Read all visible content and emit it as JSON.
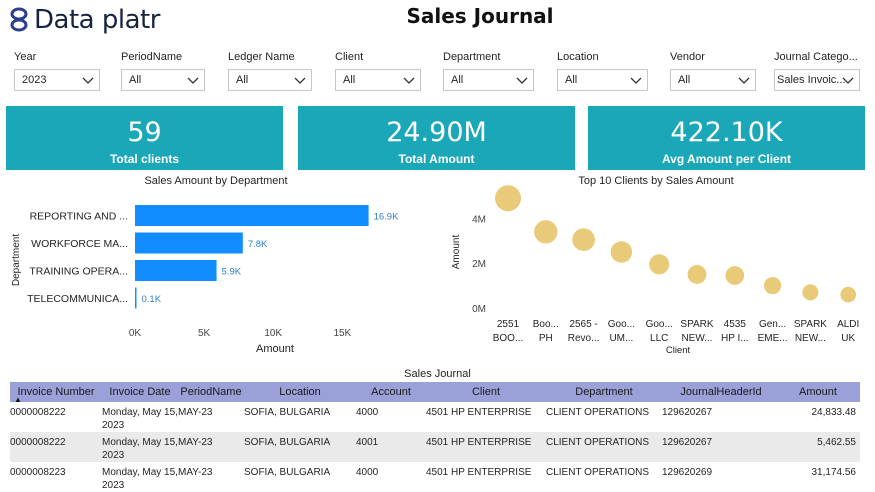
{
  "header": {
    "logo_text": "Data platr",
    "title": "Sales Journal"
  },
  "filters": [
    {
      "label": "Year",
      "value": "2023"
    },
    {
      "label": "PeriodName",
      "value": "All"
    },
    {
      "label": "Ledger Name",
      "value": "All"
    },
    {
      "label": "Client",
      "value": "All"
    },
    {
      "label": "Department",
      "value": "All"
    },
    {
      "label": "Location",
      "value": "All"
    },
    {
      "label": "Vendor",
      "value": "All"
    },
    {
      "label": "Journal Catego...",
      "value": "Sales Invoic..."
    }
  ],
  "kpis": [
    {
      "value": "59",
      "label": "Total clients"
    },
    {
      "value": "24.90M",
      "label": "Total Amount"
    },
    {
      "value": "422.10K",
      "label": "Avg Amount per Client"
    }
  ],
  "colors": {
    "kpi_bg": "#1aa8b8",
    "bar": "#118dff",
    "bubble": "#e6c56e",
    "table_header": "#9aa0d8"
  },
  "chart_data": [
    {
      "type": "bar",
      "orientation": "horizontal",
      "title": "Sales Amount by Department",
      "xlabel": "Amount",
      "ylabel": "Department",
      "categories": [
        "REPORTING AND ...",
        "WORKFORCE MA...",
        "TRAINING OPERA...",
        "TELECOMMUNICA..."
      ],
      "values": [
        16900,
        7800,
        5900,
        100
      ],
      "data_labels": [
        "16.9K",
        "7.8K",
        "5.9K",
        "0.1K"
      ],
      "xlim": [
        0,
        20000
      ],
      "xticks": [
        0,
        5000,
        10000,
        15000
      ],
      "xtick_labels": [
        "0K",
        "5K",
        "10K",
        "15K"
      ]
    },
    {
      "type": "scatter",
      "title": "Top 10 Clients by Sales Amount",
      "xlabel": "Client",
      "ylabel": "Amount",
      "categories": [
        [
          "2551",
          "BOO..."
        ],
        [
          "Boo...",
          "PH"
        ],
        [
          "2565 -",
          "Revo..."
        ],
        [
          "Goo...",
          "UM..."
        ],
        [
          "Goo...",
          "LLC"
        ],
        [
          "SPARK",
          "NEW..."
        ],
        [
          "4535",
          "HP I..."
        ],
        [
          "Gen...",
          "EME..."
        ],
        [
          "SPARK",
          "NEW..."
        ],
        [
          "ALDI",
          "UK"
        ]
      ],
      "values": [
        4900000,
        3400000,
        3050000,
        2500000,
        1950000,
        1500000,
        1450000,
        1000000,
        700000,
        600000
      ],
      "ylim": [
        0,
        5000000
      ],
      "yticks": [
        0,
        2000000,
        4000000
      ],
      "ytick_labels": [
        "0M",
        "2M",
        "4M"
      ]
    }
  ],
  "table": {
    "title": "Sales Journal",
    "columns": [
      "Invoice Number",
      "Invoice Date",
      "PeriodName",
      "Location",
      "Account",
      "Client",
      "Department",
      "JournalHeaderId",
      "Amount"
    ],
    "rows": [
      [
        "0000008222",
        "Monday, May 15, 2023",
        "MAY-23",
        "SOFIA, BULGARIA",
        "4000",
        "4501 HP ENTERPRISE",
        "CLIENT OPERATIONS",
        "129620267",
        "24,833.48"
      ],
      [
        "0000008222",
        "Monday, May 15, 2023",
        "MAY-23",
        "SOFIA, BULGARIA",
        "4001",
        "4501 HP ENTERPRISE",
        "CLIENT OPERATIONS",
        "129620267",
        "5,462.55"
      ],
      [
        "0000008223",
        "Monday, May 15, 2023",
        "MAY-23",
        "SOFIA, BULGARIA",
        "4000",
        "4501 HP ENTERPRISE",
        "CLIENT OPERATIONS",
        "129620269",
        "31,174.56"
      ]
    ]
  }
}
